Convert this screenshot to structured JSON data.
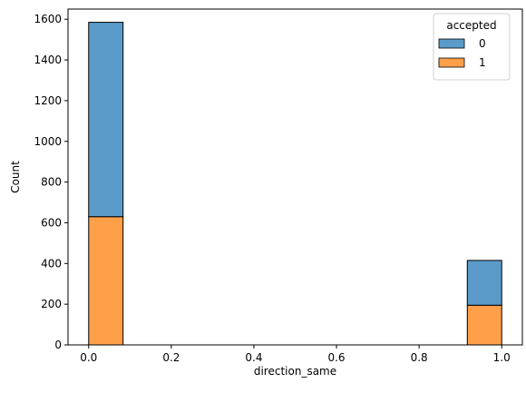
{
  "chart_data": {
    "type": "bar",
    "subtype": "stacked-histogram",
    "title": "",
    "xlabel": "direction_same",
    "ylabel": "Count",
    "xlim": [
      -0.05,
      1.05
    ],
    "ylim": [
      0,
      1650
    ],
    "xticks": [
      0.0,
      0.2,
      0.4,
      0.6,
      0.8,
      1.0
    ],
    "xtick_labels": [
      "0.0",
      "0.2",
      "0.4",
      "0.6",
      "0.8",
      "1.0"
    ],
    "yticks": [
      0,
      200,
      400,
      600,
      800,
      1000,
      1200,
      1400,
      1600
    ],
    "ytick_labels": [
      "0",
      "200",
      "400",
      "600",
      "800",
      "1000",
      "1200",
      "1400",
      "1600"
    ],
    "bins": [
      {
        "x0": 0.0,
        "x1": 0.0833
      },
      {
        "x0": 0.9167,
        "x1": 1.0
      }
    ],
    "series": [
      {
        "name": "1",
        "color": "#ff9f4a",
        "values": [
          630,
          195
        ]
      },
      {
        "name": "0",
        "color": "#5a9bc9",
        "values": [
          955,
          220
        ]
      }
    ],
    "grid": false,
    "legend": {
      "title": "accepted",
      "placement": "top-right",
      "entries": [
        {
          "label": "0",
          "color": "#5a9bc9"
        },
        {
          "label": "1",
          "color": "#ff9f4a"
        }
      ]
    }
  }
}
